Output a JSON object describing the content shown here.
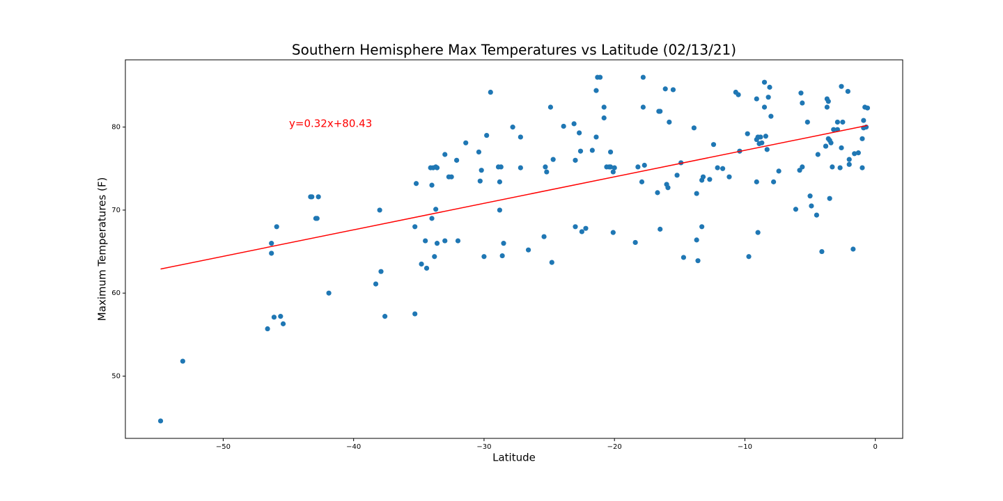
{
  "chart_data": {
    "type": "scatter",
    "title": "Southern Hemisphere Max Temperatures vs Latitude (02/13/21)",
    "x_label": "Latitude",
    "y_label": "Maximum Temperatures (F)",
    "color": "#1f77b4",
    "x": [
      -54.8,
      -53.1,
      -46.6,
      -46.3,
      -46.3,
      -46.1,
      -45.9,
      -45.6,
      -45.4,
      -43.3,
      -43.2,
      -42.9,
      -42.8,
      -42.7,
      -41.9,
      -38.3,
      -38.0,
      -37.9,
      -37.6,
      -35.3,
      -35.3,
      -35.2,
      -34.8,
      -34.5,
      -34.4,
      -34.1,
      -34.0,
      -34.0,
      -33.9,
      -33.8,
      -33.7,
      -33.7,
      -33.6,
      -33.6,
      -33.0,
      -33.0,
      -32.7,
      -32.5,
      -32.1,
      -32.0,
      -31.4,
      -30.4,
      -30.3,
      -30.2,
      -30.0,
      -29.8,
      -29.5,
      -28.9,
      -28.8,
      -28.8,
      -28.7,
      -28.6,
      -28.5,
      -27.8,
      -27.2,
      -27.2,
      -26.6,
      -25.4,
      -25.3,
      -25.2,
      -24.9,
      -24.8,
      -24.7,
      -23.9,
      -23.1,
      -23.0,
      -23.0,
      -22.7,
      -22.6,
      -22.5,
      -22.2,
      -21.7,
      -21.4,
      -21.4,
      -21.3,
      -21.1,
      -20.8,
      -20.8,
      -20.6,
      -20.4,
      -20.3,
      -20.3,
      -20.1,
      -20.1,
      -20.0,
      -18.4,
      -18.2,
      -17.9,
      -17.8,
      -17.8,
      -17.7,
      -16.7,
      -16.6,
      -16.5,
      -16.5,
      -16.1,
      -16.0,
      -15.9,
      -15.8,
      -15.5,
      -15.2,
      -14.9,
      -14.7,
      -13.9,
      -13.7,
      -13.7,
      -13.6,
      -13.3,
      -13.3,
      -13.2,
      -12.7,
      -12.4,
      -12.1,
      -11.7,
      -11.2,
      -10.7,
      -10.5,
      -10.4,
      -9.8,
      -9.7,
      -9.1,
      -9.1,
      -9.1,
      -9.0,
      -9.0,
      -8.9,
      -8.8,
      -8.7,
      -8.5,
      -8.5,
      -8.4,
      -8.3,
      -8.2,
      -8.1,
      -8.0,
      -7.8,
      -7.4,
      -6.1,
      -5.8,
      -5.7,
      -5.6,
      -5.6,
      -5.2,
      -5.0,
      -4.9,
      -4.5,
      -4.4,
      -4.1,
      -3.8,
      -3.8,
      -3.7,
      -3.7,
      -3.6,
      -3.6,
      -3.5,
      -3.5,
      -3.4,
      -3.3,
      -3.2,
      -2.9,
      -2.9,
      -2.7,
      -2.6,
      -2.6,
      -2.5,
      -2.1,
      -2.0,
      -2.0,
      -1.7,
      -1.6,
      -1.3,
      -1.0,
      -1.0,
      -0.9,
      -0.9,
      -0.8,
      -0.7,
      -0.6
    ],
    "values": [
      44.6,
      51.8,
      55.7,
      66.0,
      64.8,
      57.1,
      68.0,
      57.2,
      56.3,
      71.6,
      71.6,
      69.0,
      69.0,
      71.6,
      60.0,
      61.1,
      70.0,
      62.6,
      57.2,
      57.5,
      68.0,
      73.2,
      63.5,
      66.3,
      63.0,
      75.1,
      73.0,
      69.0,
      75.1,
      64.4,
      75.2,
      70.1,
      66.0,
      75.1,
      76.7,
      66.3,
      74.0,
      74.0,
      76.0,
      66.3,
      78.1,
      77.0,
      73.5,
      74.8,
      64.4,
      79.0,
      84.2,
      75.2,
      70.0,
      73.4,
      75.2,
      64.5,
      66.0,
      80.0,
      78.8,
      75.1,
      65.2,
      66.8,
      75.2,
      74.6,
      82.4,
      63.7,
      76.1,
      80.1,
      80.4,
      68.0,
      76.0,
      79.3,
      77.1,
      67.4,
      67.8,
      77.2,
      78.8,
      84.4,
      86.0,
      86.0,
      81.1,
      82.4,
      75.2,
      75.2,
      77.0,
      75.2,
      74.6,
      67.3,
      75.1,
      66.1,
      75.2,
      73.4,
      86.0,
      82.4,
      75.4,
      72.1,
      81.9,
      81.9,
      67.7,
      84.6,
      73.1,
      72.7,
      80.6,
      84.5,
      74.2,
      75.7,
      64.3,
      79.9,
      72.0,
      66.4,
      63.9,
      68.0,
      73.6,
      74.0,
      73.7,
      77.9,
      75.1,
      75.0,
      74.0,
      84.2,
      83.9,
      77.1,
      79.2,
      64.4,
      83.4,
      78.5,
      73.4,
      78.8,
      67.3,
      78.0,
      78.8,
      78.1,
      85.4,
      82.4,
      78.9,
      77.3,
      83.6,
      84.8,
      81.3,
      73.4,
      74.7,
      70.1,
      74.8,
      84.1,
      75.2,
      82.9,
      80.6,
      71.7,
      70.5,
      69.4,
      76.7,
      65.0,
      77.7,
      77.7,
      82.4,
      83.4,
      78.6,
      83.1,
      71.4,
      78.4,
      78.1,
      75.2,
      79.7,
      80.6,
      79.7,
      75.1,
      84.9,
      77.5,
      80.6,
      84.3,
      75.5,
      76.1,
      65.3,
      76.8,
      76.9,
      75.1,
      78.6,
      80.8,
      79.9,
      82.4,
      80.0,
      82.3
    ],
    "fit": {
      "x": [
        -54.8,
        -0.6
      ],
      "values": [
        62.9,
        80.2
      ],
      "color": "#ff0000"
    },
    "annotation": "y=0.32x+80.43",
    "annotation_color": "#ff0000",
    "xlim": [
      -57.5,
      2.1
    ],
    "ylim": [
      42.5,
      88.1
    ],
    "xticks": [
      {
        "value": -50,
        "label": "−50"
      },
      {
        "value": -40,
        "label": "−40"
      },
      {
        "value": -30,
        "label": "−30"
      },
      {
        "value": -20,
        "label": "−20"
      },
      {
        "value": -10,
        "label": "−10"
      },
      0
    ],
    "yticks": [
      50,
      60,
      70,
      80
    ]
  }
}
